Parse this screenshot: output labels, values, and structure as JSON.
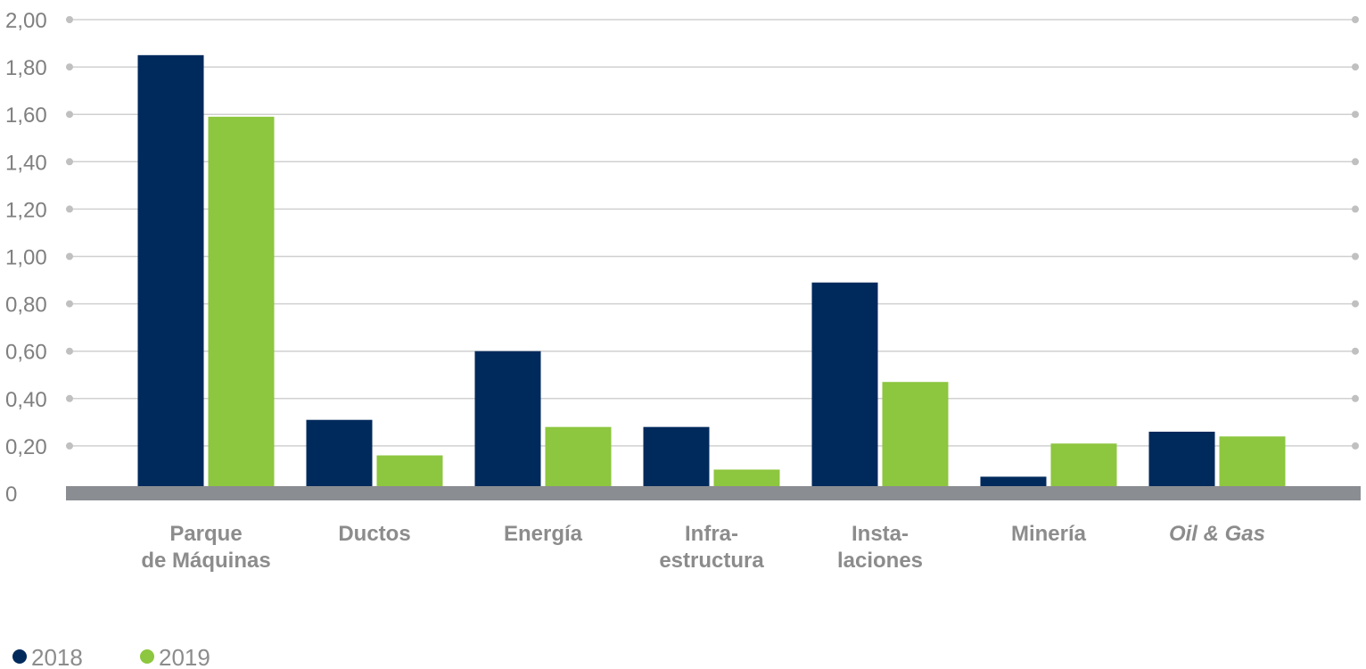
{
  "chart_data": {
    "type": "bar",
    "categories": [
      [
        "Parque",
        "de Máquinas"
      ],
      [
        "Ductos"
      ],
      [
        "Energía"
      ],
      [
        "Infra-",
        "estructura"
      ],
      [
        "Insta-",
        "laciones"
      ],
      [
        "Minería"
      ],
      [
        "Oil & Gas"
      ]
    ],
    "category_italic": [
      false,
      false,
      false,
      false,
      false,
      false,
      true
    ],
    "series": [
      {
        "name": "2018",
        "color": "#002a5c",
        "values": [
          1.85,
          0.31,
          0.6,
          0.28,
          0.89,
          0.07,
          0.26
        ]
      },
      {
        "name": "2019",
        "color": "#8dc63f",
        "values": [
          1.59,
          0.16,
          0.28,
          0.1,
          0.47,
          0.21,
          0.24
        ]
      }
    ],
    "y_ticks": [
      {
        "value": 0,
        "label": "0"
      },
      {
        "value": 0.2,
        "label": "0,20"
      },
      {
        "value": 0.4,
        "label": "0,40"
      },
      {
        "value": 0.6,
        "label": "0,60"
      },
      {
        "value": 0.8,
        "label": "0,80"
      },
      {
        "value": 1.0,
        "label": "1,00"
      },
      {
        "value": 1.2,
        "label": "1,20"
      },
      {
        "value": 1.4,
        "label": "1,40"
      },
      {
        "value": 1.6,
        "label": "1,60"
      },
      {
        "value": 1.8,
        "label": "1,80"
      },
      {
        "value": 2.0,
        "label": "2,00"
      }
    ],
    "ylim": [
      0,
      2.0
    ],
    "grid": true,
    "legend_position": "bottom-left",
    "colors": {
      "gridline": "#d0d0d0",
      "grid_dot": "#c0c0c0",
      "axis_bar": "#8a8d91",
      "text": "#8c8c8c"
    }
  }
}
